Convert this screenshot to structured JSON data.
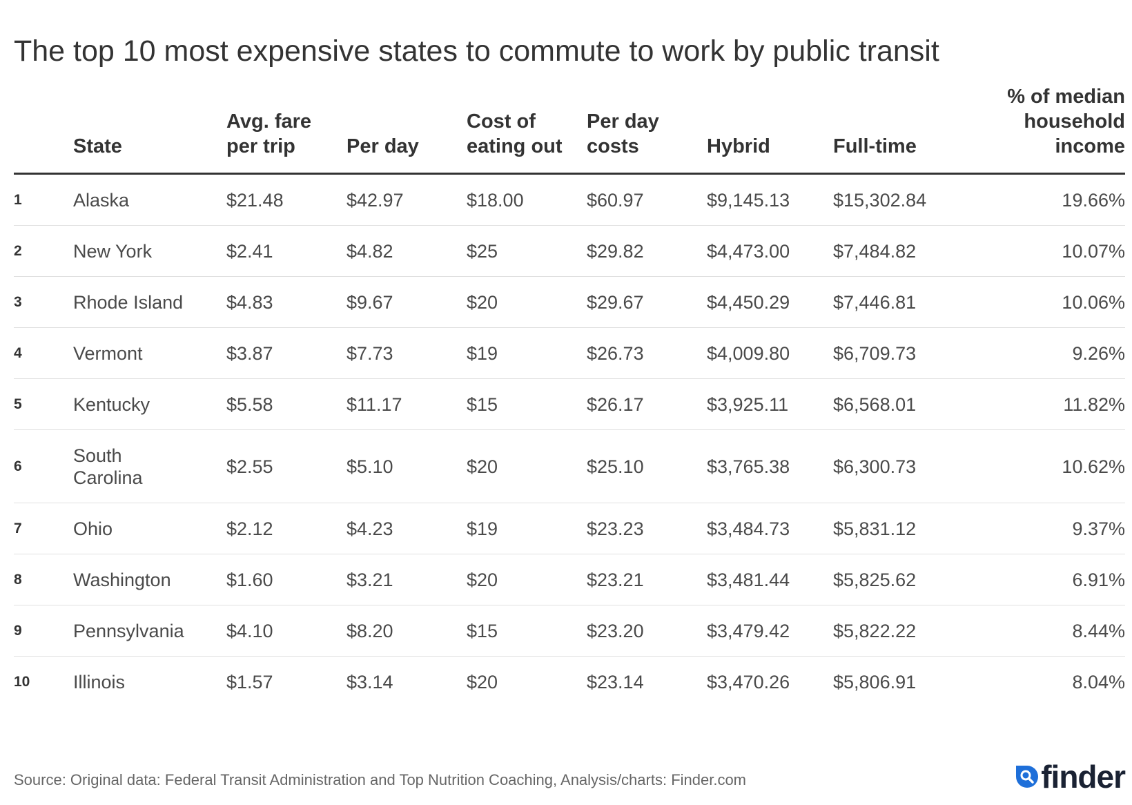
{
  "title": "The top 10 most expensive states to commute to work by public transit",
  "chart_data": {
    "type": "table",
    "title": "The top 10 most expensive states to commute to work by public transit",
    "columns": [
      {
        "key": "rank",
        "label": ""
      },
      {
        "key": "state",
        "label": "State"
      },
      {
        "key": "avg_fare",
        "label": "Avg. fare per trip"
      },
      {
        "key": "per_day",
        "label": "Per day"
      },
      {
        "key": "eating_out",
        "label": "Cost of eating out"
      },
      {
        "key": "per_day_costs",
        "label": "Per day costs"
      },
      {
        "key": "hybrid",
        "label": "Hybrid"
      },
      {
        "key": "full_time",
        "label": "Full-time"
      },
      {
        "key": "pct_income",
        "label": "% of median household income"
      }
    ],
    "rows": [
      {
        "rank": "1",
        "state": "Alaska",
        "avg_fare": "$21.48",
        "per_day": "$42.97",
        "eating_out": "$18.00",
        "per_day_costs": "$60.97",
        "hybrid": "$9,145.13",
        "full_time": "$15,302.84",
        "pct_income": "19.66%"
      },
      {
        "rank": "2",
        "state": "New York",
        "avg_fare": "$2.41",
        "per_day": "$4.82",
        "eating_out": "$25",
        "per_day_costs": "$29.82",
        "hybrid": "$4,473.00",
        "full_time": "$7,484.82",
        "pct_income": "10.07%"
      },
      {
        "rank": "3",
        "state": "Rhode Island",
        "avg_fare": "$4.83",
        "per_day": "$9.67",
        "eating_out": "$20",
        "per_day_costs": "$29.67",
        "hybrid": "$4,450.29",
        "full_time": "$7,446.81",
        "pct_income": "10.06%"
      },
      {
        "rank": "4",
        "state": "Vermont",
        "avg_fare": "$3.87",
        "per_day": "$7.73",
        "eating_out": "$19",
        "per_day_costs": "$26.73",
        "hybrid": "$4,009.80",
        "full_time": "$6,709.73",
        "pct_income": "9.26%"
      },
      {
        "rank": "5",
        "state": "Kentucky",
        "avg_fare": "$5.58",
        "per_day": "$11.17",
        "eating_out": "$15",
        "per_day_costs": "$26.17",
        "hybrid": "$3,925.11",
        "full_time": "$6,568.01",
        "pct_income": "11.82%"
      },
      {
        "rank": "6",
        "state": "South Carolina",
        "avg_fare": "$2.55",
        "per_day": "$5.10",
        "eating_out": "$20",
        "per_day_costs": "$25.10",
        "hybrid": "$3,765.38",
        "full_time": "$6,300.73",
        "pct_income": "10.62%"
      },
      {
        "rank": "7",
        "state": "Ohio",
        "avg_fare": "$2.12",
        "per_day": "$4.23",
        "eating_out": "$19",
        "per_day_costs": "$23.23",
        "hybrid": "$3,484.73",
        "full_time": "$5,831.12",
        "pct_income": "9.37%"
      },
      {
        "rank": "8",
        "state": "Washington",
        "avg_fare": "$1.60",
        "per_day": "$3.21",
        "eating_out": "$20",
        "per_day_costs": "$23.21",
        "hybrid": "$3,481.44",
        "full_time": "$5,825.62",
        "pct_income": "6.91%"
      },
      {
        "rank": "9",
        "state": "Pennsylvania",
        "avg_fare": "$4.10",
        "per_day": "$8.20",
        "eating_out": "$15",
        "per_day_costs": "$23.20",
        "hybrid": "$3,479.42",
        "full_time": "$5,822.22",
        "pct_income": "8.44%"
      },
      {
        "rank": "10",
        "state": "Illinois",
        "avg_fare": "$1.57",
        "per_day": "$3.14",
        "eating_out": "$20",
        "per_day_costs": "$23.14",
        "hybrid": "$3,470.26",
        "full_time": "$5,806.91",
        "pct_income": "8.04%"
      }
    ]
  },
  "footer": {
    "source": "Source: Original data: Federal Transit Administration and Top Nutrition Coaching, Analysis/charts: Finder.com",
    "logo_text": "finder",
    "logo_icon": "search-magnifier-icon",
    "logo_color": "#1e6fd9"
  },
  "colors": {
    "text": "#333333",
    "cell_text": "#4a4a4a",
    "rule": "#333333",
    "row_divider": "#e0e0e0",
    "brand": "#1e6fd9"
  }
}
